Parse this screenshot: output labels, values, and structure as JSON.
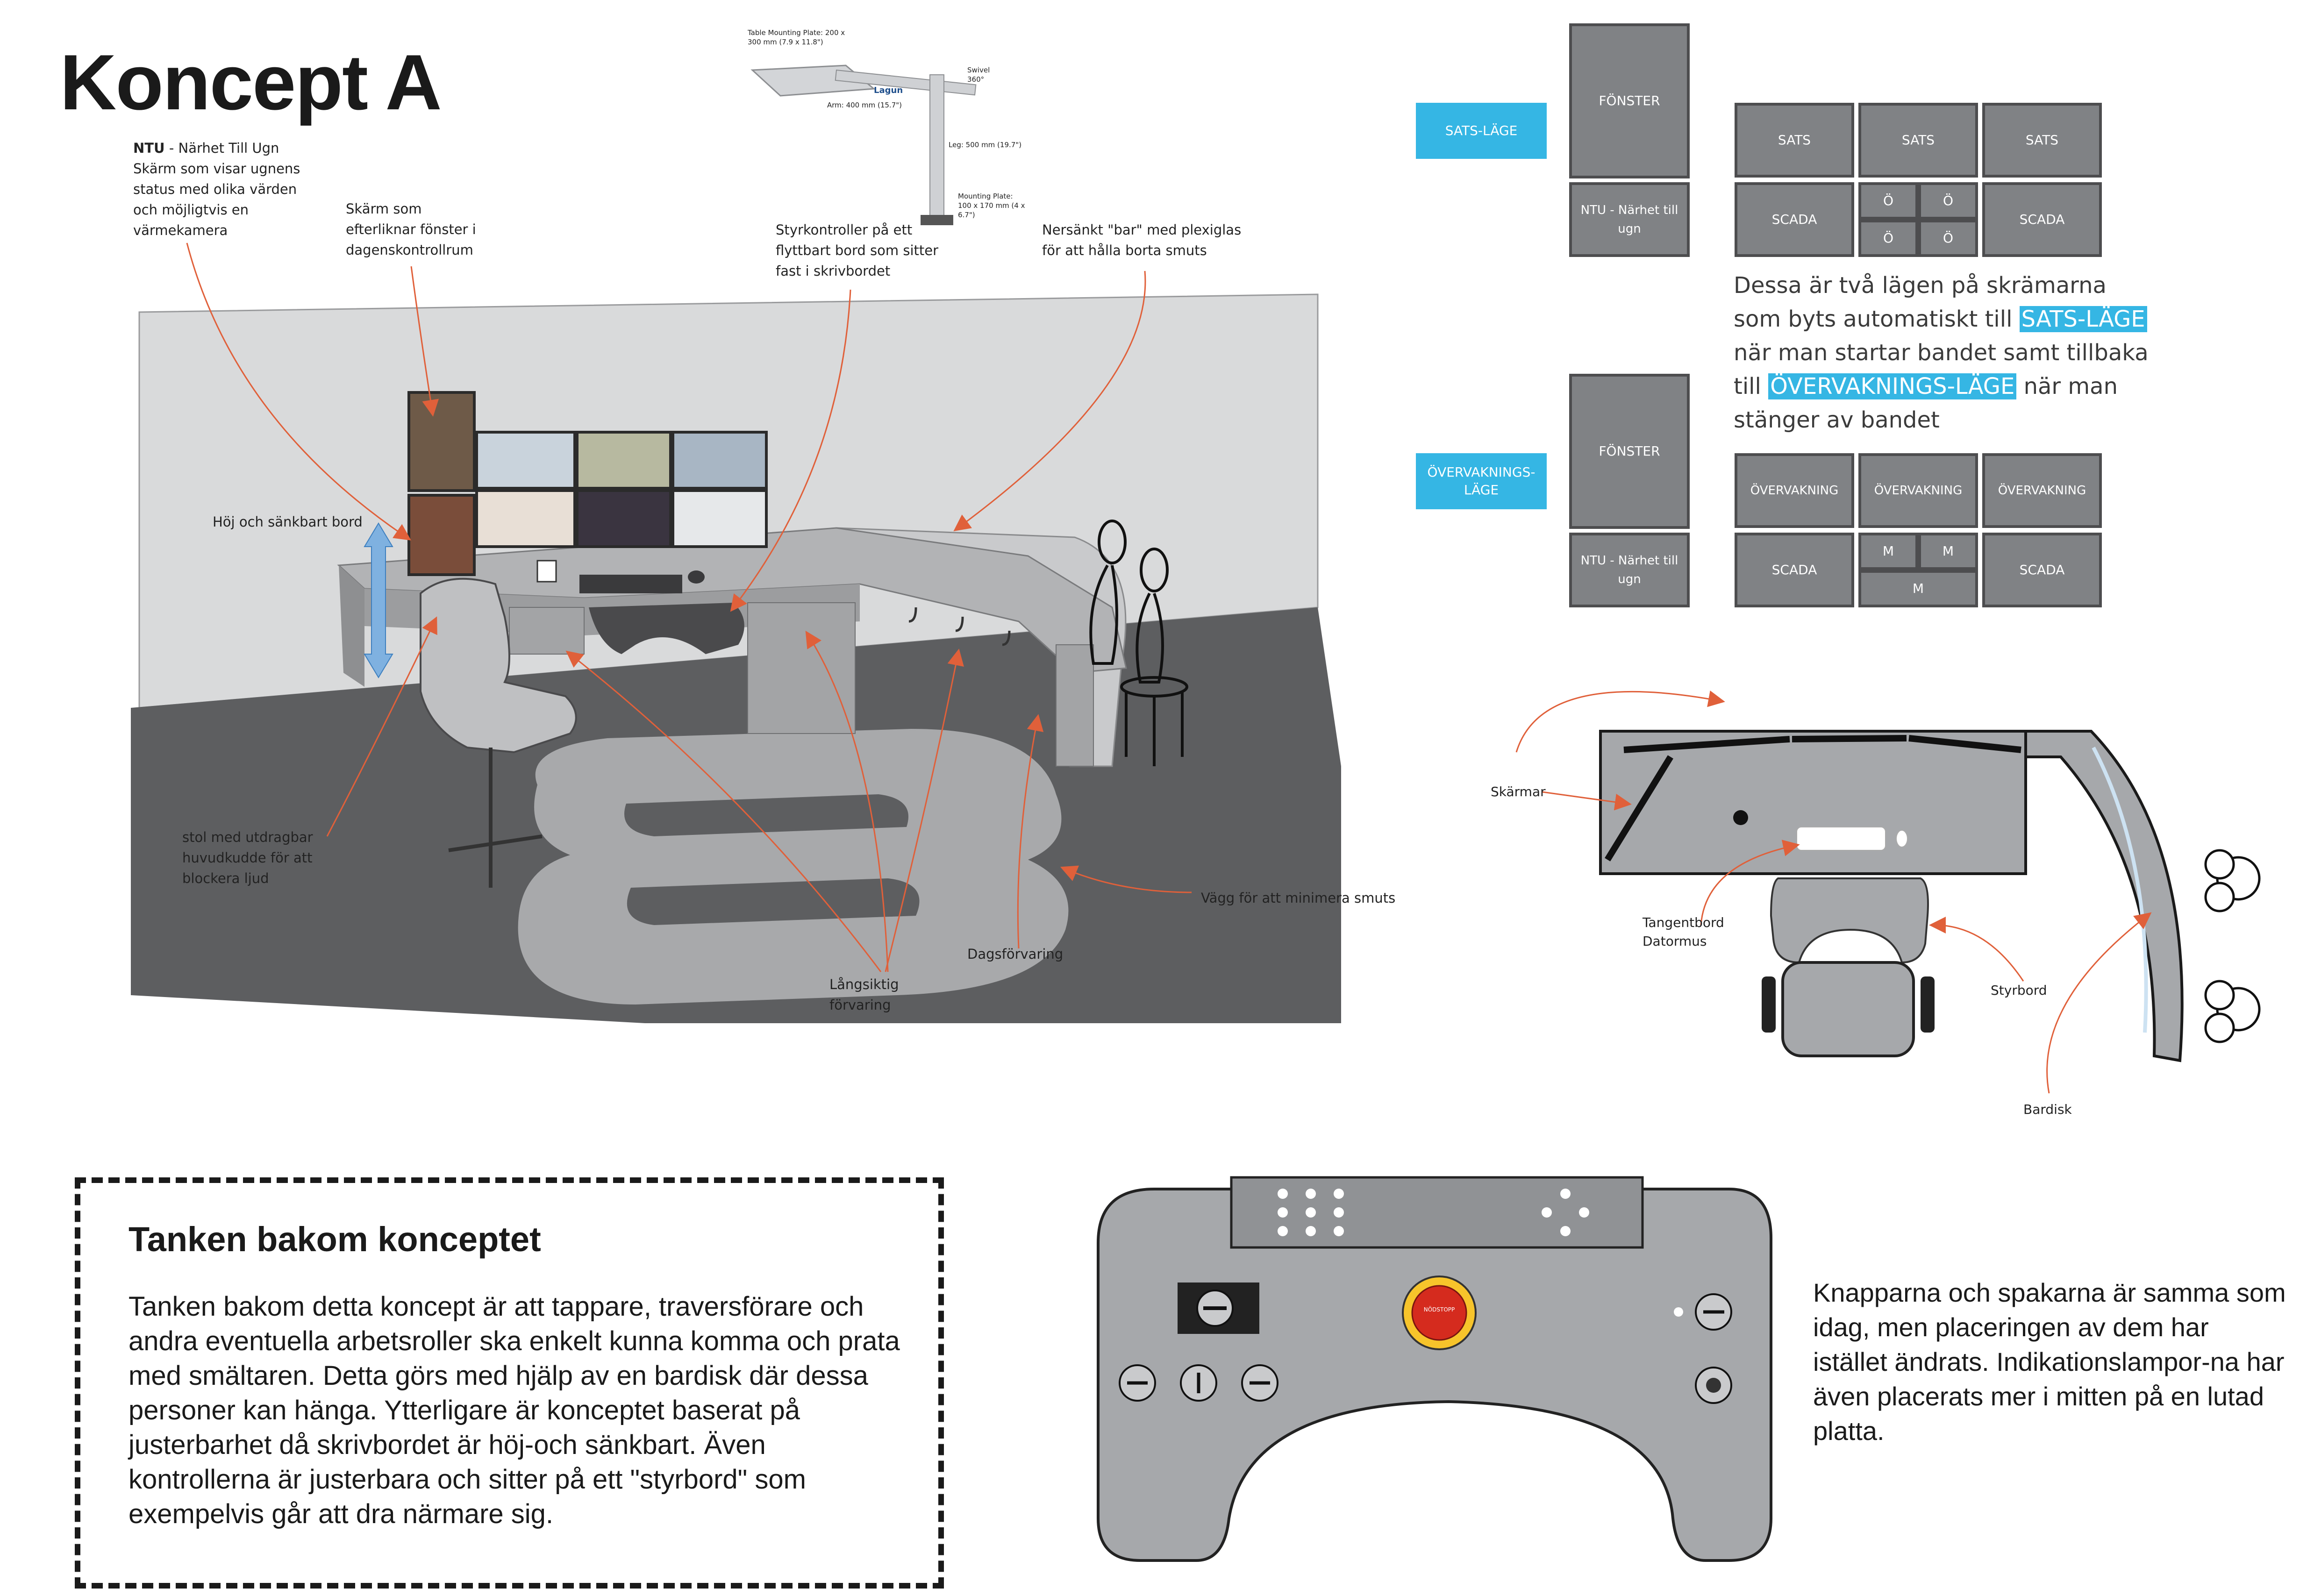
{
  "title": "Koncept A",
  "annotations": {
    "ntu_bold": "NTU",
    "ntu_rest": " - Närhet Till Ugn",
    "ntu_desc": "Skärm som visar ugnens status med olika värden och möjligtvis en värmekamera",
    "window_screen": "Skärm som efterliknar fönster i dagenskontrollrum",
    "controller_table": "Styrkontroller på ett flyttbart bord som sitter fast i skrivbordet",
    "sunken_bar": "Nersänkt \"bar\" med plexiglas för att hålla borta smuts",
    "height_table": "Höj och sänkbart bord",
    "chair": "stol med utdragbar huvudkudde för att blockera ljud",
    "wall": "Vägg för att minimera smuts",
    "daily_storage": "Dagsförvaring",
    "long_storage": "Långsiktig förvaring"
  },
  "mount": {
    "plate_top": "Table Mounting Plate: 200 x 300 mm (7.9 x 11.8\")",
    "swivel": "Swivel 360°",
    "arm": "Arm: 400 mm (15.7\")",
    "leg": "Leg: 500 mm (19.7\")",
    "plate_bottom": "Mounting Plate: 100 x 170 mm (4 x 6.7\")",
    "brand": "Lagun"
  },
  "modes": {
    "sats_label": "SATS-LÄGE",
    "overv_label": "ÖVERVAKNINGS-LÄGE",
    "fonster": "FÖNSTER",
    "ntu": "NTU - Närhet till ugn",
    "sats": "SATS",
    "scada": "SCADA",
    "o": "Ö",
    "overvakning": "ÖVERVAKNING",
    "m": "M"
  },
  "modes_text": {
    "line1": "Dessa är två lägen på skrämarna",
    "line2_pre": "som byts automatiskt till ",
    "line2_hl": "SATS-LÄGE",
    "line3": "när man startar bandet samt tillbaka",
    "line4_pre": "till ",
    "line4_hl": "ÖVERVAKNINGS-LÄGE",
    "line4_post": " när man",
    "line5": "stänger av bandet"
  },
  "plan": {
    "screens": "Skärmar",
    "keyboard": "Tangentbord",
    "mouse": "Datormus",
    "control_table": "Styrbord",
    "bar": "Bardisk"
  },
  "concept": {
    "heading": "Tanken bakom konceptet",
    "text": "Tanken bakom detta koncept är att tappare, traversförare och andra eventuella arbetsroller ska enkelt kunna komma och prata med smältaren. Detta görs med hjälp av en bardisk där dessa personer kan hänga. Ytterligare är konceptet baserat på justerbarhet då skrivbordet är höj-och sänkbart. Även kontrollerna är justerbara och sitter på ett \"styrbord\" som exempelvis går att dra närmare sig."
  },
  "panel": {
    "estop": "NÖDSTOPP",
    "text": "Knapparna och spakarna är samma som idag, men placeringen av dem har istället ändrats. Indikationslampor-na har även placerats mer i mitten på en lutad platta."
  },
  "colors": {
    "accent_blue": "#35b6e4",
    "arrow_orange": "#e0603a",
    "box_gray": "#808285",
    "floor_dark": "#5d5e60",
    "panel_gray": "#a6a8ab",
    "estop_red": "#d52b1e",
    "estop_yellow": "#f7c42b"
  }
}
